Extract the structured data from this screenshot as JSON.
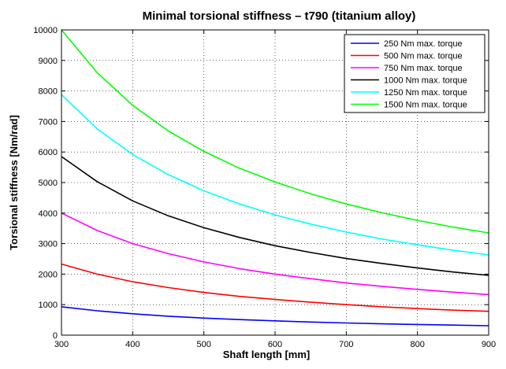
{
  "chart_data": {
    "type": "line",
    "title": "Minimal torsional stiffness – t790 (titanium alloy)",
    "xlabel": "Shaft length [mm]",
    "ylabel": "Torsional stiffness [Nm/rad]",
    "xlim": [
      300,
      900
    ],
    "ylim": [
      0,
      10000
    ],
    "xticks": [
      300,
      400,
      500,
      600,
      700,
      800,
      900
    ],
    "yticks": [
      0,
      1000,
      2000,
      3000,
      4000,
      5000,
      6000,
      7000,
      8000,
      9000,
      10000
    ],
    "grid": true,
    "legend_position": "top-right",
    "x": [
      300,
      350,
      400,
      450,
      500,
      550,
      600,
      650,
      700,
      750,
      800,
      850,
      900
    ],
    "series": [
      {
        "name": "250 Nm max. torque",
        "color": "#0000ff",
        "values": [
          930,
          800,
          700,
          620,
          560,
          510,
          470,
          430,
          400,
          370,
          350,
          330,
          310
        ]
      },
      {
        "name": "500 Nm max. torque",
        "color": "#ff0000",
        "values": [
          2330,
          2000,
          1750,
          1560,
          1400,
          1270,
          1170,
          1080,
          1000,
          930,
          870,
          820,
          780
        ]
      },
      {
        "name": "750 Nm max. torque",
        "color": "#ff00ff",
        "values": [
          4000,
          3430,
          3000,
          2670,
          2400,
          2180,
          2000,
          1850,
          1710,
          1600,
          1500,
          1410,
          1330
        ]
      },
      {
        "name": "1000 Nm max. torque",
        "color": "#000000",
        "values": [
          5850,
          5030,
          4400,
          3910,
          3520,
          3200,
          2930,
          2710,
          2510,
          2350,
          2200,
          2070,
          1960
        ]
      },
      {
        "name": "1250 Nm max. torque",
        "color": "#00ffff",
        "values": [
          7880,
          6760,
          5920,
          5260,
          4730,
          4300,
          3940,
          3640,
          3380,
          3150,
          2960,
          2780,
          2630
        ]
      },
      {
        "name": "1500 Nm max. torque",
        "color": "#00ff00",
        "values": [
          10000,
          8600,
          7530,
          6690,
          6020,
          5470,
          5020,
          4630,
          4300,
          4010,
          3760,
          3540,
          3350
        ]
      }
    ]
  }
}
